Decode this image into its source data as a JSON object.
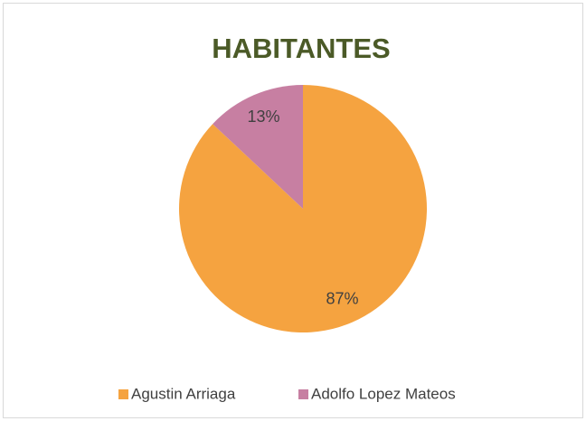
{
  "chart_data": {
    "type": "pie",
    "title": "HABITANTES",
    "categories": [
      "Agustin Arriaga",
      "Adolfo Lopez Mateos"
    ],
    "values": [
      87,
      13
    ],
    "value_labels": [
      "87%",
      "13%"
    ],
    "colors": [
      "#f5a340",
      "#c77fa2"
    ],
    "legend": "bottom"
  }
}
